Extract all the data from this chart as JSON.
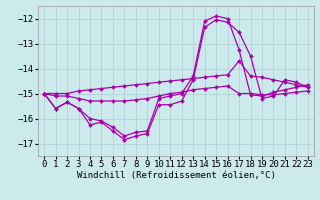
{
  "background_color": "#cce9ec",
  "grid_color": "#aacfd4",
  "line_color": "#aa00aa",
  "marker": "D",
  "markersize": 2.0,
  "linewidth": 0.9,
  "xlabel": "Windchill (Refroidissement éolien,°C)",
  "xlabel_fontsize": 6.5,
  "xlim": [
    -0.5,
    23.5
  ],
  "ylim": [
    -17.5,
    -11.5
  ],
  "yticks": [
    -17,
    -16,
    -15,
    -14,
    -13,
    -12
  ],
  "xticks": [
    0,
    1,
    2,
    3,
    4,
    5,
    6,
    7,
    8,
    9,
    10,
    11,
    12,
    13,
    14,
    15,
    16,
    17,
    18,
    19,
    20,
    21,
    22,
    23
  ],
  "tick_fontsize": 6.5,
  "lines": [
    {
      "x": [
        0,
        1,
        2,
        3,
        4,
        5,
        6,
        7,
        8,
        9,
        10,
        11,
        12,
        13,
        14,
        15,
        16,
        17,
        18,
        19,
        20,
        21,
        22,
        23
      ],
      "y": [
        -15.0,
        -15.6,
        -15.35,
        -15.6,
        -16.25,
        -16.15,
        -16.5,
        -16.85,
        -16.7,
        -16.6,
        -15.45,
        -15.45,
        -15.3,
        -14.45,
        -12.35,
        -12.05,
        -12.15,
        -12.55,
        -13.5,
        -15.2,
        -15.1,
        -14.45,
        -14.55,
        -14.75
      ]
    },
    {
      "x": [
        0,
        1,
        2,
        3,
        4,
        5,
        6,
        7,
        8,
        9,
        10,
        11,
        12,
        13,
        14,
        15,
        16,
        17,
        18,
        19,
        20,
        21,
        22,
        23
      ],
      "y": [
        -15.0,
        -15.0,
        -15.0,
        -14.9,
        -14.85,
        -14.8,
        -14.75,
        -14.7,
        -14.65,
        -14.6,
        -14.55,
        -14.5,
        -14.45,
        -14.4,
        -14.35,
        -14.3,
        -14.25,
        -13.7,
        -14.3,
        -14.35,
        -14.45,
        -14.55,
        -14.65,
        -14.75
      ]
    },
    {
      "x": [
        0,
        1,
        2,
        3,
        4,
        5,
        6,
        7,
        8,
        9,
        10,
        11,
        12,
        13,
        14,
        15,
        16,
        17,
        18,
        19,
        20,
        21,
        22,
        23
      ],
      "y": [
        -15.0,
        -15.1,
        -15.1,
        -15.2,
        -15.3,
        -15.3,
        -15.3,
        -15.3,
        -15.25,
        -15.2,
        -15.1,
        -15.0,
        -14.95,
        -14.85,
        -14.8,
        -14.75,
        -14.7,
        -15.0,
        -15.0,
        -15.05,
        -15.05,
        -15.0,
        -14.95,
        -14.9
      ]
    },
    {
      "x": [
        0,
        1,
        2,
        3,
        4,
        5,
        6,
        7,
        8,
        9,
        10,
        11,
        12,
        13,
        14,
        15,
        16,
        17,
        18,
        19,
        20,
        21,
        22,
        23
      ],
      "y": [
        -15.0,
        -15.6,
        -15.35,
        -15.6,
        -16.0,
        -16.1,
        -16.35,
        -16.7,
        -16.55,
        -16.5,
        -15.2,
        -15.1,
        -15.0,
        -14.3,
        -12.1,
        -11.9,
        -12.0,
        -13.25,
        -15.05,
        -15.1,
        -14.95,
        -14.85,
        -14.75,
        -14.65
      ]
    }
  ]
}
